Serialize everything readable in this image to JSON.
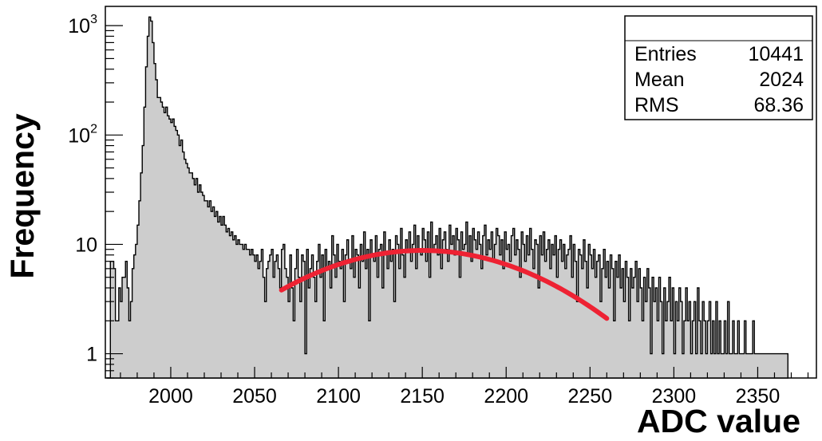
{
  "chart_data": {
    "type": "histogram",
    "title": "",
    "xlabel": "ADC value",
    "ylabel": "Frequency",
    "xlim": [
      1961,
      2385
    ],
    "ylim": [
      0.6,
      1500
    ],
    "yscale": "log",
    "x_ticks": [
      {
        "value": 2000,
        "label": "2000"
      },
      {
        "value": 2050,
        "label": "2050"
      },
      {
        "value": 2100,
        "label": "2100"
      },
      {
        "value": 2150,
        "label": "2150"
      },
      {
        "value": 2200,
        "label": "2200"
      },
      {
        "value": 2250,
        "label": "2250"
      },
      {
        "value": 2300,
        "label": "2300"
      },
      {
        "value": 2350,
        "label": "2350"
      }
    ],
    "y_ticks": [
      {
        "value": 1,
        "label": "1",
        "exp": ""
      },
      {
        "value": 10,
        "label": "10",
        "exp": ""
      },
      {
        "value": 100,
        "label": "10",
        "exp": "2"
      },
      {
        "value": 1000,
        "label": "10",
        "exp": "3"
      }
    ],
    "bin_width": 1,
    "bin_start": 1962,
    "counts": [
      0,
      0,
      7,
      7,
      6,
      2,
      2,
      4,
      3,
      5,
      5,
      7,
      4,
      2,
      3,
      6,
      8,
      10,
      15,
      25,
      45,
      80,
      180,
      420,
      800,
      1200,
      1100,
      700,
      450,
      320,
      220,
      220,
      200,
      180,
      160,
      180,
      150,
      140,
      130,
      140,
      120,
      110,
      100,
      80,
      90,
      70,
      60,
      55,
      50,
      45,
      45,
      40,
      35,
      40,
      30,
      35,
      30,
      28,
      25,
      25,
      22,
      25,
      20,
      22,
      18,
      20,
      16,
      18,
      15,
      18,
      15,
      13,
      14,
      12,
      13,
      11,
      12,
      10,
      11,
      10,
      10,
      9,
      10,
      9,
      9,
      8,
      9,
      8,
      7,
      8,
      6,
      7,
      9,
      5,
      3,
      6,
      7,
      8,
      9,
      5,
      7,
      8,
      6,
      4,
      9,
      10,
      6,
      5,
      3,
      8,
      4,
      2,
      6,
      9,
      5,
      3,
      8,
      7,
      1,
      9,
      4,
      6,
      8,
      5,
      3,
      7,
      10,
      5,
      8,
      2,
      9,
      6,
      7,
      4,
      12,
      8,
      5,
      10,
      7,
      6,
      9,
      3,
      8,
      11,
      7,
      6,
      12,
      5,
      9,
      8,
      4,
      10,
      7,
      13,
      6,
      9,
      2,
      11,
      8,
      7,
      12,
      5,
      9,
      10,
      4,
      13,
      8,
      6,
      11,
      7,
      9,
      3,
      12,
      10,
      6,
      14,
      8,
      5,
      11,
      9,
      13,
      7,
      10,
      15,
      6,
      12,
      9,
      8,
      14,
      11,
      7,
      13,
      5,
      16,
      9,
      10,
      12,
      8,
      14,
      6,
      11,
      13,
      9,
      7,
      15,
      10,
      12,
      8,
      14,
      11,
      5,
      13,
      9,
      10,
      16,
      8,
      12,
      7,
      14,
      11,
      9,
      13,
      10,
      6,
      12,
      15,
      8,
      11,
      9,
      13,
      7,
      10,
      14,
      12,
      8,
      11,
      6,
      13,
      9,
      10,
      7,
      12,
      14,
      8,
      11,
      9,
      5,
      13,
      10,
      7,
      12,
      8,
      14,
      9,
      6,
      11,
      10,
      4,
      12,
      8,
      13,
      7,
      9,
      11,
      6,
      10,
      8,
      12,
      5,
      9,
      11,
      7,
      10,
      6,
      8,
      9,
      12,
      5,
      10,
      7,
      3,
      9,
      8,
      6,
      11,
      7,
      4,
      10,
      8,
      6,
      9,
      5,
      7,
      8,
      3,
      6,
      9,
      5,
      7,
      4,
      8,
      6,
      2,
      7,
      5,
      8,
      4,
      6,
      3,
      7,
      5,
      2,
      6,
      4,
      5,
      7,
      3,
      6,
      4,
      2,
      5,
      3,
      6,
      4,
      1,
      5,
      3,
      4,
      2,
      5,
      3,
      1,
      4,
      2,
      3,
      5,
      2,
      4,
      1,
      3,
      2,
      4,
      3,
      1,
      2,
      4,
      2,
      3,
      1,
      2,
      3,
      1,
      4,
      2,
      1,
      3,
      2,
      1,
      2,
      3,
      1,
      2,
      1,
      3,
      1,
      2,
      1,
      1,
      2,
      1,
      3,
      1,
      1,
      2,
      1,
      1,
      2,
      1,
      1,
      1,
      2,
      1,
      1,
      1,
      1,
      2,
      1,
      1,
      1,
      1,
      1,
      1,
      1,
      1,
      1,
      1,
      1,
      1,
      1,
      1,
      1,
      1,
      1,
      1,
      1,
      1
    ],
    "fit": {
      "type": "gaus",
      "mean": 2150,
      "sigma": 65,
      "amplitude": 8.8,
      "xmin": 2066,
      "xmax": 2260,
      "color": "#ee2233"
    },
    "fill_color": "#cdcdcd",
    "line_color": "#000000"
  },
  "stats_box": {
    "title": "",
    "rows": [
      {
        "label": "Entries",
        "value": "10441"
      },
      {
        "label": "Mean",
        "value": "2024"
      },
      {
        "label": "RMS",
        "value": "68.36"
      }
    ]
  }
}
